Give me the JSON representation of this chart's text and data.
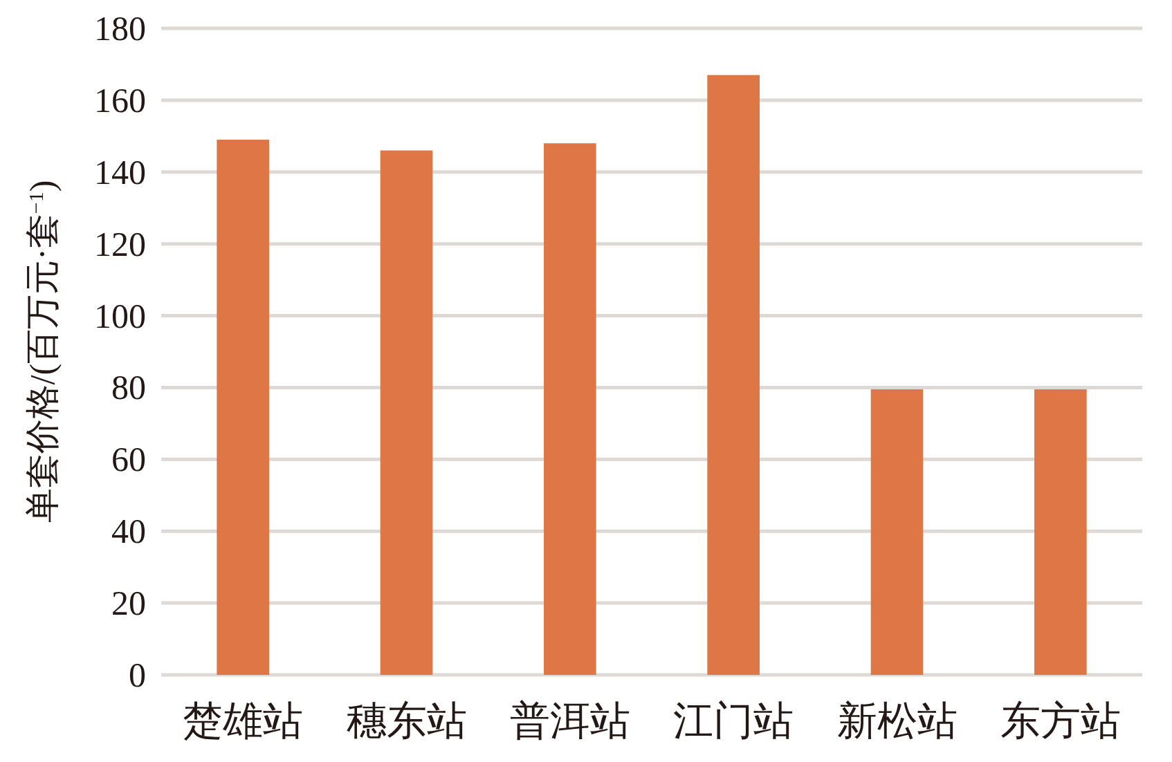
{
  "chart_data": {
    "type": "bar",
    "ylabel": "单套价格/(百万元·套$^{−1}$)",
    "categories": [
      "楚雄站",
      "穗东站",
      "普洱站",
      "江门站",
      "新松站",
      "东方站"
    ],
    "values": [
      149,
      146,
      148,
      167,
      79.5,
      79.5
    ],
    "color": "#de7645",
    "ylim": [
      0,
      180
    ],
    "yticks": [
      0,
      20,
      40,
      60,
      80,
      100,
      120,
      140,
      160,
      180
    ],
    "grid": "y"
  }
}
